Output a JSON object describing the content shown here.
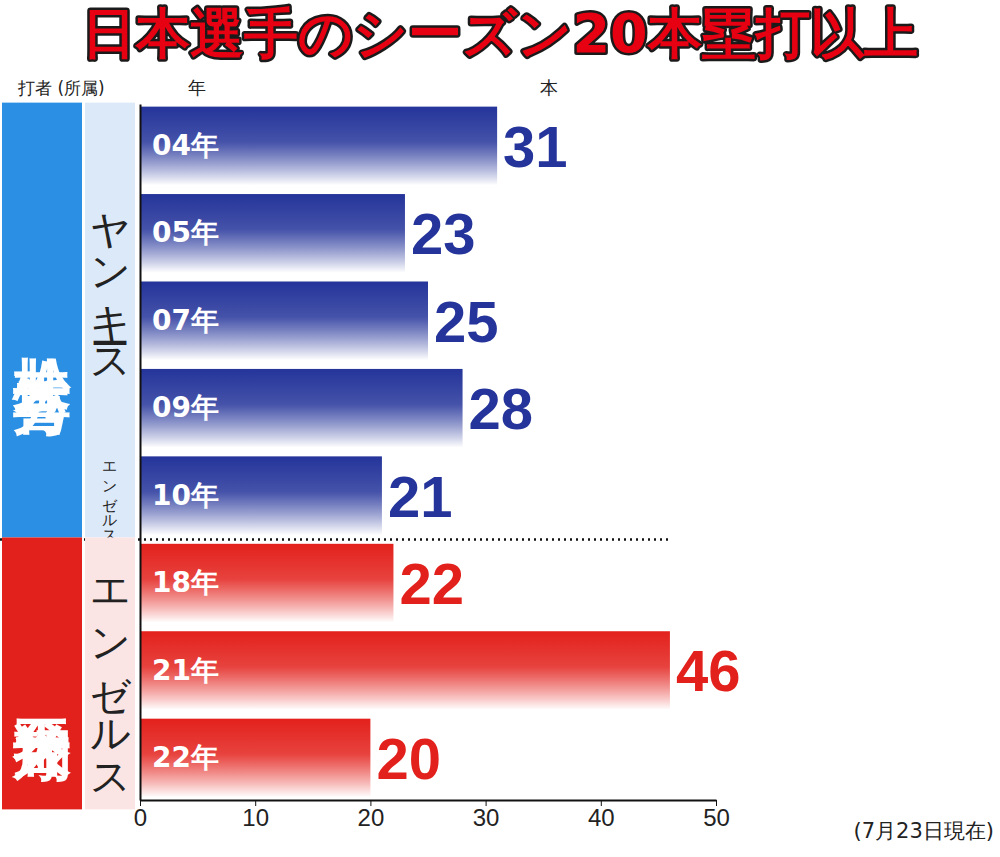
{
  "chart_data": {
    "type": "bar",
    "orientation": "horizontal",
    "title": "日本選手のシーズン20本塁打以上",
    "header": [
      "打者 (所属)",
      "年",
      "本"
    ],
    "note": "(7月23日現在)",
    "categories": [
      "04年",
      "05年",
      "07年",
      "09年",
      "10年",
      "18年",
      "21年",
      "22年"
    ],
    "values": [
      31,
      23,
      25,
      28,
      21,
      22,
      46,
      20
    ],
    "colors": [
      "#24349a",
      "#24349a",
      "#24349a",
      "#24349a",
      "#24349a",
      "#e3211c",
      "#e3211c",
      "#e3211c"
    ],
    "batters": [
      "松井 秀喜",
      "松井 秀喜",
      "松井 秀喜",
      "松井 秀喜",
      "松井 秀喜",
      "大谷翔平",
      "大谷翔平",
      "大谷翔平"
    ],
    "teams": [
      "ヤンキース",
      "ヤンキース",
      "ヤンキース",
      "ヤンキース",
      "エンゼルス",
      "エンゼルス",
      "エンゼルス",
      "エンゼルス"
    ],
    "xlim": [
      0,
      50
    ],
    "xticks": [
      0,
      10,
      20,
      30,
      40,
      50
    ],
    "data_labels": true
  }
}
